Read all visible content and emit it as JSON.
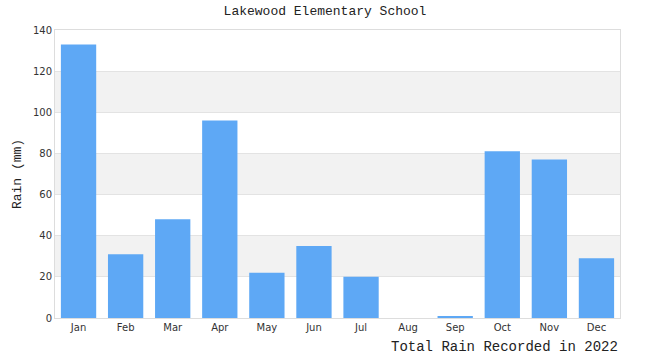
{
  "chart_data": {
    "type": "bar",
    "title": "Lakewood Elementary School",
    "xlabel": "Total Rain Recorded in 2022",
    "ylabel": "Rain (mm)",
    "categories": [
      "Jan",
      "Feb",
      "Mar",
      "Apr",
      "May",
      "Jun",
      "Jul",
      "Aug",
      "Sep",
      "Oct",
      "Nov",
      "Dec"
    ],
    "values": [
      133,
      31,
      48,
      96,
      22,
      35,
      20,
      0,
      1,
      81,
      77,
      29
    ],
    "color": "#5ea8f5",
    "ylim": [
      0,
      140
    ],
    "yticks": [
      0,
      20,
      40,
      60,
      80,
      100,
      120,
      140
    ],
    "grid": true
  }
}
